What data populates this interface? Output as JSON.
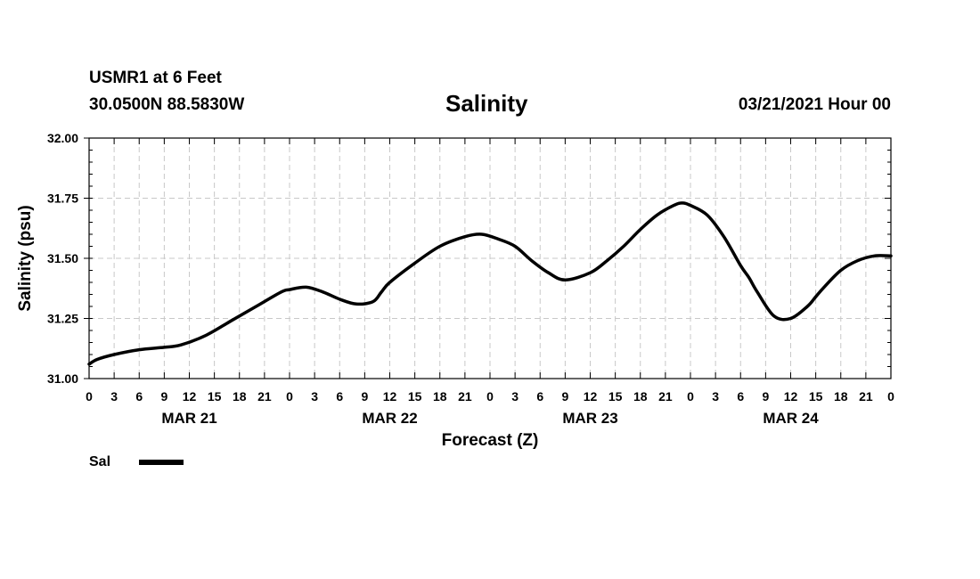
{
  "header": {
    "station": "USMR1 at 6 Feet",
    "coords": "30.0500N 88.5830W",
    "datetime": "03/21/2021 Hour 00"
  },
  "chart_data": {
    "type": "line",
    "title": "Salinity",
    "xlabel": "Forecast (Z)",
    "ylabel": "Salinity (psu)",
    "x_unit": "hours from 03/21/2021 00Z",
    "xlim": [
      0,
      96
    ],
    "ylim": [
      31.0,
      32.0
    ],
    "y_ticks": [
      "31.00",
      "31.25",
      "31.50",
      "31.75",
      "32.00"
    ],
    "x_tick_labels": [
      "0",
      "3",
      "6",
      "9",
      "12",
      "15",
      "18",
      "21",
      "0",
      "3",
      "6",
      "9",
      "12",
      "15",
      "18",
      "21",
      "0",
      "3",
      "6",
      "9",
      "12",
      "15",
      "18",
      "21",
      "0",
      "3",
      "6",
      "9",
      "12",
      "15",
      "18",
      "21",
      "0"
    ],
    "day_labels": [
      {
        "label": "MAR 21",
        "hour": 12
      },
      {
        "label": "MAR 22",
        "hour": 36
      },
      {
        "label": "MAR 23",
        "hour": 60
      },
      {
        "label": "MAR 24",
        "hour": 84
      }
    ],
    "grid": true,
    "series": [
      {
        "name": "Sal",
        "x": [
          0,
          1,
          3,
          6,
          9,
          11,
          14,
          17,
          20,
          23,
          24,
          26,
          28,
          30,
          32,
          34,
          35,
          36,
          39,
          42,
          45,
          47,
          49,
          51,
          53,
          55,
          57,
          60,
          62,
          64,
          66,
          68,
          70,
          71,
          72,
          74,
          76,
          78,
          79,
          80,
          82,
          84,
          86,
          87,
          88,
          90,
          92,
          94,
          96
        ],
        "values": [
          31.06,
          31.08,
          31.1,
          31.12,
          31.13,
          31.14,
          31.18,
          31.24,
          31.3,
          31.36,
          31.37,
          31.38,
          31.36,
          31.33,
          31.31,
          31.32,
          31.36,
          31.4,
          31.48,
          31.55,
          31.59,
          31.6,
          31.58,
          31.55,
          31.49,
          31.44,
          31.41,
          31.44,
          31.49,
          31.55,
          31.62,
          31.68,
          31.72,
          31.73,
          31.72,
          31.68,
          31.59,
          31.47,
          31.42,
          31.36,
          31.26,
          31.25,
          31.3,
          31.34,
          31.38,
          31.45,
          31.49,
          31.51,
          31.51
        ]
      }
    ]
  },
  "legend": {
    "label": "Sal"
  }
}
